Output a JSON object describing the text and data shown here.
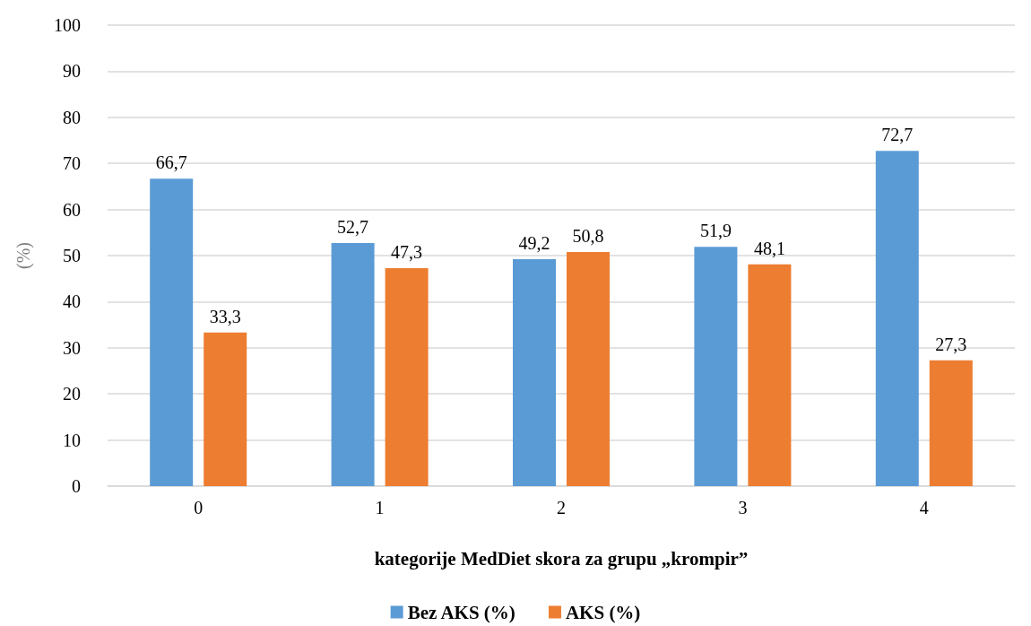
{
  "chart_data": {
    "type": "bar",
    "xlabel": "kategorije MedDiet skora za grupu „krompir”",
    "ylabel": "(%)",
    "categories": [
      "0",
      "1",
      "2",
      "3",
      "4"
    ],
    "series": [
      {
        "name": "Bez AKS (%)",
        "color": "#5b9bd5",
        "values": [
          66.7,
          52.7,
          49.2,
          51.9,
          72.7
        ],
        "value_labels": [
          "66,7",
          "52,7",
          "49,2",
          "51,9",
          "72,7"
        ]
      },
      {
        "name": "AKS (%)",
        "color": "#ed7d31",
        "values": [
          33.3,
          47.3,
          50.8,
          48.1,
          27.3
        ],
        "value_labels": [
          "33,3",
          "47,3",
          "50,8",
          "48,1",
          "27,3"
        ]
      }
    ],
    "ylim": [
      0,
      100
    ],
    "yticks": [
      0,
      10,
      20,
      30,
      40,
      50,
      60,
      70,
      80,
      90,
      100
    ],
    "grid": "y",
    "legend": "bottom"
  }
}
